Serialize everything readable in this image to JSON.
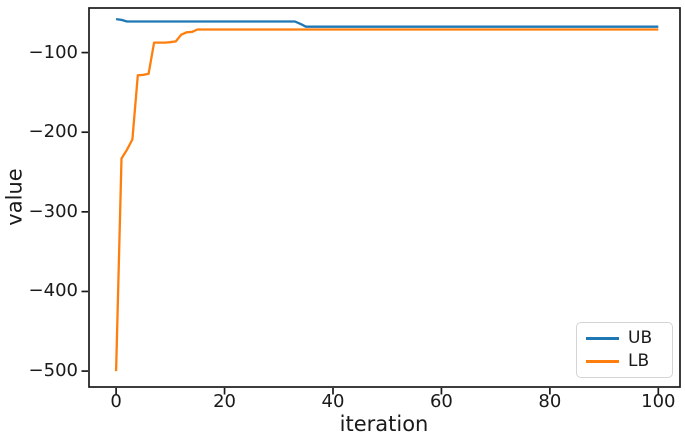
{
  "figure": {
    "background": "#ffffff"
  },
  "colors": {
    "spine": "#1a1a1a",
    "tick": "#1a1a1a",
    "text": "#1a1a1a",
    "legend_border": "#d4d4d4",
    "ub_blue": "#1f77b4",
    "lb_orange": "#ff7f0e"
  },
  "chart_data": {
    "type": "line",
    "title": "",
    "xlabel": "iteration",
    "ylabel": "value",
    "xlim": [
      -5,
      104
    ],
    "ylim": [
      -520,
      -44
    ],
    "grid": false,
    "legend_position": "lower right",
    "xticks": [
      {
        "value": 0,
        "label": "0"
      },
      {
        "value": 20,
        "label": "20"
      },
      {
        "value": 40,
        "label": "40"
      },
      {
        "value": 60,
        "label": "60"
      },
      {
        "value": 80,
        "label": "80"
      },
      {
        "value": 100,
        "label": "100"
      }
    ],
    "yticks": [
      {
        "value": -100,
        "label": "−100"
      },
      {
        "value": -200,
        "label": "−200"
      },
      {
        "value": -300,
        "label": "−300"
      },
      {
        "value": -400,
        "label": "−400"
      },
      {
        "value": -500,
        "label": "−500"
      }
    ],
    "series": [
      {
        "name": "UB",
        "color": "#1f77b4",
        "points": [
          [
            0,
            -58
          ],
          [
            1,
            -59
          ],
          [
            2,
            -61
          ],
          [
            33,
            -61
          ],
          [
            34,
            -64
          ],
          [
            35,
            -67.5
          ],
          [
            100,
            -67.5
          ]
        ]
      },
      {
        "name": "LB",
        "color": "#ff7f0e",
        "points": [
          [
            0,
            -500
          ],
          [
            1,
            -233
          ],
          [
            2,
            -222
          ],
          [
            3,
            -209
          ],
          [
            4,
            -128.5
          ],
          [
            5,
            -128
          ],
          [
            6,
            -126.5
          ],
          [
            7,
            -87.5
          ],
          [
            9,
            -87.5
          ],
          [
            10,
            -87
          ],
          [
            11,
            -86
          ],
          [
            12,
            -77.5
          ],
          [
            13,
            -74.5
          ],
          [
            14,
            -74
          ],
          [
            15,
            -71
          ],
          [
            16,
            -71
          ],
          [
            100,
            -71
          ]
        ]
      }
    ]
  }
}
